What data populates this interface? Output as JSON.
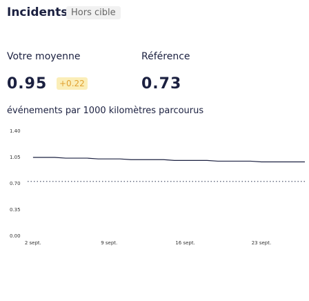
{
  "header": {
    "title": "Incidents",
    "badge": "Hors cible"
  },
  "metrics": {
    "average": {
      "label": "Votre moyenne",
      "value": 0.95,
      "delta": "+0.22"
    },
    "reference": {
      "label": "Référence",
      "value": 0.73
    }
  },
  "unit": "événements par 1000 kilomètres parcourus",
  "chart_data": {
    "type": "line",
    "categories": [
      "2 sept.",
      null,
      null,
      null,
      null,
      null,
      null,
      "9 sept.",
      null,
      null,
      null,
      null,
      null,
      null,
      "16 sept.",
      null,
      null,
      null,
      null,
      null,
      null,
      "23 sept.",
      null,
      null,
      null,
      null
    ],
    "series": [
      {
        "color": "#1b2040",
        "values": [
          1.05,
          1.05,
          1.05,
          1.04,
          1.04,
          1.04,
          1.03,
          1.03,
          1.03,
          1.02,
          1.02,
          1.02,
          1.02,
          1.01,
          1.01,
          1.01,
          1.01,
          1.0,
          1.0,
          1.0,
          1.0,
          0.99,
          0.99,
          0.99,
          0.99,
          0.99
        ]
      }
    ],
    "ylim": [
      0,
      1.4
    ],
    "yticks": [
      {
        "value": 0,
        "label": "0.00"
      },
      {
        "value": 0.35,
        "label": "0.35"
      },
      {
        "value": 0.7,
        "label": "0.70"
      },
      {
        "value": 1.05,
        "label": "1.05"
      },
      {
        "value": 1.4,
        "label": "1.40"
      }
    ],
    "reference_color": "#6b7186"
  }
}
